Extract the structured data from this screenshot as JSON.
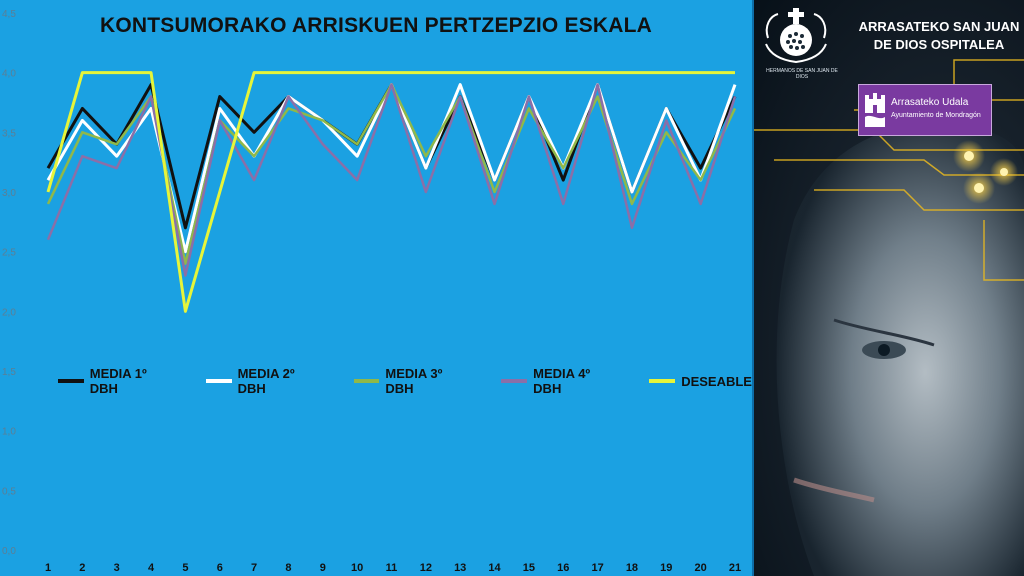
{
  "chart_data": {
    "type": "line",
    "title": "KONTSUMORAKO ARRISKUEN PERTZEPZIO ESKALA",
    "xlabel": "",
    "ylabel": "",
    "categories": [
      "1",
      "2",
      "3",
      "4",
      "5",
      "6",
      "7",
      "8",
      "9",
      "10",
      "11",
      "12",
      "13",
      "14",
      "15",
      "16",
      "17",
      "18",
      "19",
      "20",
      "21"
    ],
    "ylim": [
      0,
      4.5
    ],
    "yticks": [
      "0,0",
      "0,5",
      "1,0",
      "1,5",
      "2,0",
      "2,5",
      "3,0",
      "3,5",
      "4,0",
      "4,5"
    ],
    "grid": false,
    "legend_position": "middle",
    "series": [
      {
        "name": "MEDIA 1º DBH",
        "color": "#111111",
        "values": [
          3.2,
          3.7,
          3.4,
          3.9,
          2.7,
          3.8,
          3.5,
          3.8,
          3.6,
          3.4,
          3.9,
          3.2,
          3.8,
          3.1,
          3.8,
          3.1,
          3.9,
          3.0,
          3.7,
          3.2,
          3.8
        ]
      },
      {
        "name": "MEDIA 2º DBH",
        "color": "#ffffff",
        "values": [
          3.1,
          3.6,
          3.3,
          3.7,
          2.5,
          3.7,
          3.3,
          3.8,
          3.6,
          3.3,
          3.9,
          3.2,
          3.9,
          3.1,
          3.8,
          3.2,
          3.9,
          3.0,
          3.7,
          3.1,
          3.9
        ]
      },
      {
        "name": "MEDIA 3º DBH",
        "color": "#8fb84a",
        "values": [
          2.9,
          3.5,
          3.4,
          3.8,
          2.4,
          3.6,
          3.3,
          3.7,
          3.6,
          3.4,
          3.9,
          3.3,
          3.8,
          3.0,
          3.7,
          3.2,
          3.8,
          2.9,
          3.5,
          3.1,
          3.7
        ]
      },
      {
        "name": "MEDIA 4º DBH",
        "color": "#8a6fa8",
        "values": [
          2.6,
          3.3,
          3.2,
          3.8,
          2.3,
          3.6,
          3.1,
          3.8,
          3.4,
          3.1,
          3.9,
          3.0,
          3.8,
          2.9,
          3.8,
          2.9,
          3.9,
          2.7,
          3.6,
          2.9,
          3.8
        ]
      },
      {
        "name": "DESEABLE",
        "color": "#e6f53a",
        "values": [
          3.0,
          4.0,
          4.0,
          4.0,
          2.0,
          3.0,
          4.0,
          4.0,
          4.0,
          4.0,
          4.0,
          4.0,
          4.0,
          4.0,
          4.0,
          4.0,
          4.0,
          4.0,
          4.0,
          4.0,
          4.0
        ]
      }
    ]
  },
  "sidebar": {
    "logo_caption": "HERMANOS DE SAN JUAN DE DIOS",
    "hospital_name": "ARRASATEKO SAN JUAN DE DIOS OSPITALEA",
    "udala_line1": "Arrasateko Udala",
    "udala_line2": "Ayuntamiento de Mondragón"
  },
  "colors": {
    "chart_background": "#1ba1e2",
    "udala_purple": "#7a3aa0"
  }
}
